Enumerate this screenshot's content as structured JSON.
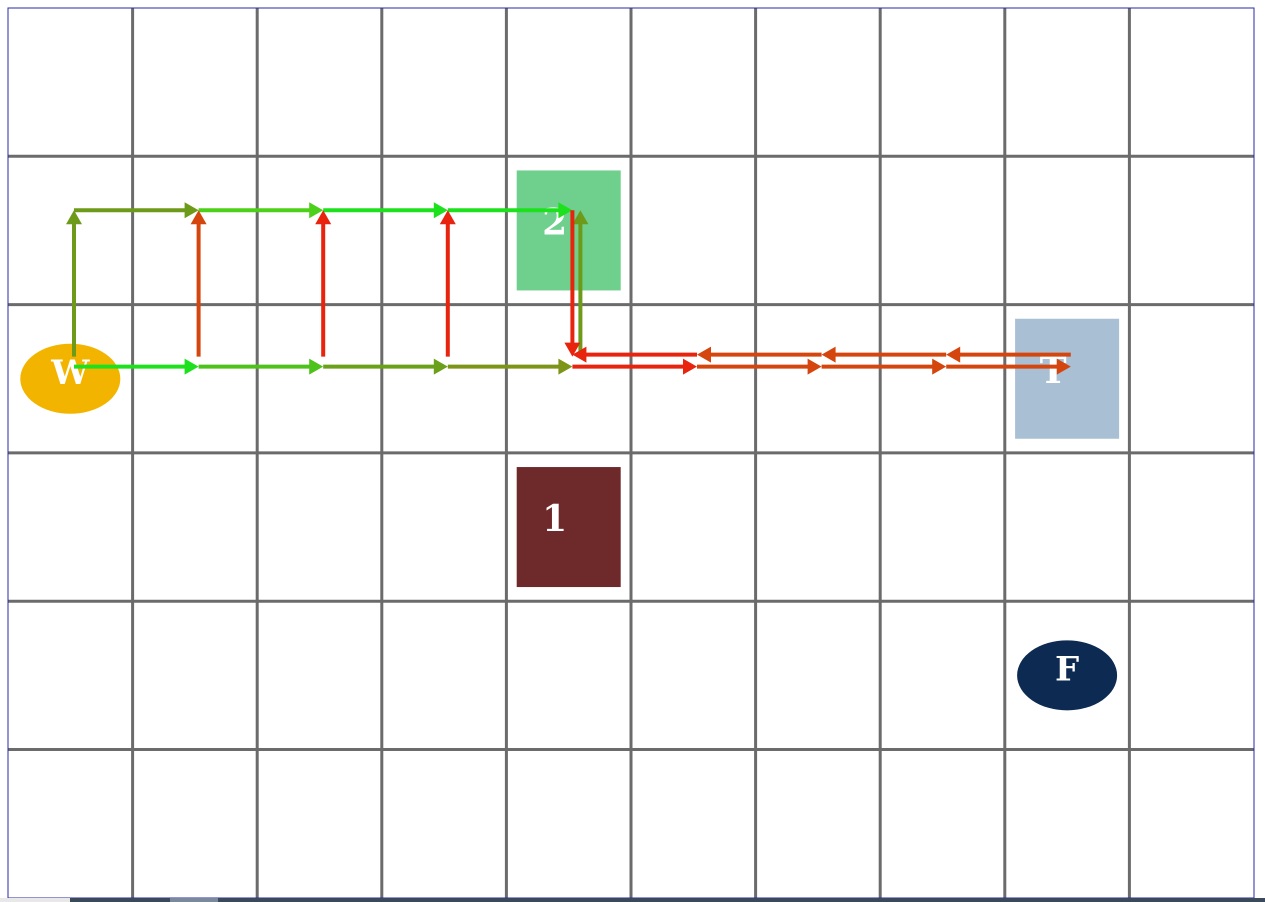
{
  "grid": {
    "cols": 10,
    "rows": 6
  },
  "nodes": [
    {
      "id": "W",
      "label": "W",
      "shape": "ellipse",
      "col": 0,
      "row": 2,
      "color": "#f3b400",
      "text_color": "#ffffff"
    },
    {
      "id": "2",
      "label": "2",
      "shape": "rect",
      "col": 4,
      "row": 1,
      "color": "#6fcf8c",
      "text_color": "#ffffff"
    },
    {
      "id": "T",
      "label": "T",
      "shape": "rect",
      "col": 8,
      "row": 2,
      "color": "#a9bfd4",
      "text_color": "#ffffff"
    },
    {
      "id": "1",
      "label": "1",
      "shape": "rect",
      "col": 4,
      "row": 3,
      "color": "#6e2a2a",
      "text_color": "#ffffff"
    },
    {
      "id": "F",
      "label": "F",
      "shape": "ellipse",
      "col": 8,
      "row": 4,
      "color": "#0c2a52",
      "text_color": "#ffffff"
    }
  ],
  "arrows": [
    {
      "from": [
        0,
        2
      ],
      "to": [
        1,
        2
      ],
      "lane": "bottom",
      "color": "#1ee11e"
    },
    {
      "from": [
        1,
        2
      ],
      "to": [
        2,
        2
      ],
      "lane": "bottom",
      "color": "#4dc21a"
    },
    {
      "from": [
        2,
        2
      ],
      "to": [
        3,
        2
      ],
      "lane": "bottom",
      "color": "#6aa01a"
    },
    {
      "from": [
        3,
        2
      ],
      "to": [
        4,
        2
      ],
      "lane": "bottom",
      "color": "#7c9418"
    },
    {
      "from": [
        0,
        2
      ],
      "to": [
        0,
        1
      ],
      "lane": "left",
      "color": "#6e9a1a"
    },
    {
      "from": [
        0,
        1
      ],
      "to": [
        1,
        1
      ],
      "lane": "top",
      "color": "#6e9a1a"
    },
    {
      "from": [
        1,
        1
      ],
      "to": [
        2,
        1
      ],
      "lane": "top",
      "color": "#4dd01a"
    },
    {
      "from": [
        2,
        1
      ],
      "to": [
        3,
        1
      ],
      "lane": "top",
      "color": "#1ee11e"
    },
    {
      "from": [
        3,
        1
      ],
      "to": [
        4,
        1
      ],
      "lane": "top",
      "color": "#1ee11e"
    },
    {
      "from": [
        1,
        2
      ],
      "to": [
        1,
        1
      ],
      "lane": "center",
      "color": "#d4460e"
    },
    {
      "from": [
        2,
        2
      ],
      "to": [
        2,
        1
      ],
      "lane": "center",
      "color": "#e8230e"
    },
    {
      "from": [
        3,
        2
      ],
      "to": [
        3,
        1
      ],
      "lane": "center",
      "color": "#e8230e"
    },
    {
      "from": [
        4,
        2
      ],
      "to": [
        4,
        1
      ],
      "lane": "green-up",
      "color": "#6e9a1a"
    },
    {
      "from": [
        4,
        1
      ],
      "to": [
        4,
        2
      ],
      "lane": "red-down",
      "color": "#e8230e"
    },
    {
      "from": [
        4,
        2
      ],
      "to": [
        5,
        2
      ],
      "lane": "bottom",
      "color": "#e8230e"
    },
    {
      "from": [
        5,
        2
      ],
      "to": [
        6,
        2
      ],
      "lane": "bottom",
      "color": "#d4460e"
    },
    {
      "from": [
        6,
        2
      ],
      "to": [
        7,
        2
      ],
      "lane": "bottom",
      "color": "#d4460e"
    },
    {
      "from": [
        7,
        2
      ],
      "to": [
        8,
        2
      ],
      "lane": "bottom",
      "color": "#d4460e"
    },
    {
      "from": [
        8,
        2
      ],
      "to": [
        7,
        2
      ],
      "lane": "top",
      "color": "#d4460e"
    },
    {
      "from": [
        7,
        2
      ],
      "to": [
        6,
        2
      ],
      "lane": "top",
      "color": "#d4460e"
    },
    {
      "from": [
        6,
        2
      ],
      "to": [
        5,
        2
      ],
      "lane": "top",
      "color": "#d4460e"
    },
    {
      "from": [
        5,
        2
      ],
      "to": [
        4,
        2
      ],
      "lane": "top",
      "color": "#e8230e"
    }
  ]
}
